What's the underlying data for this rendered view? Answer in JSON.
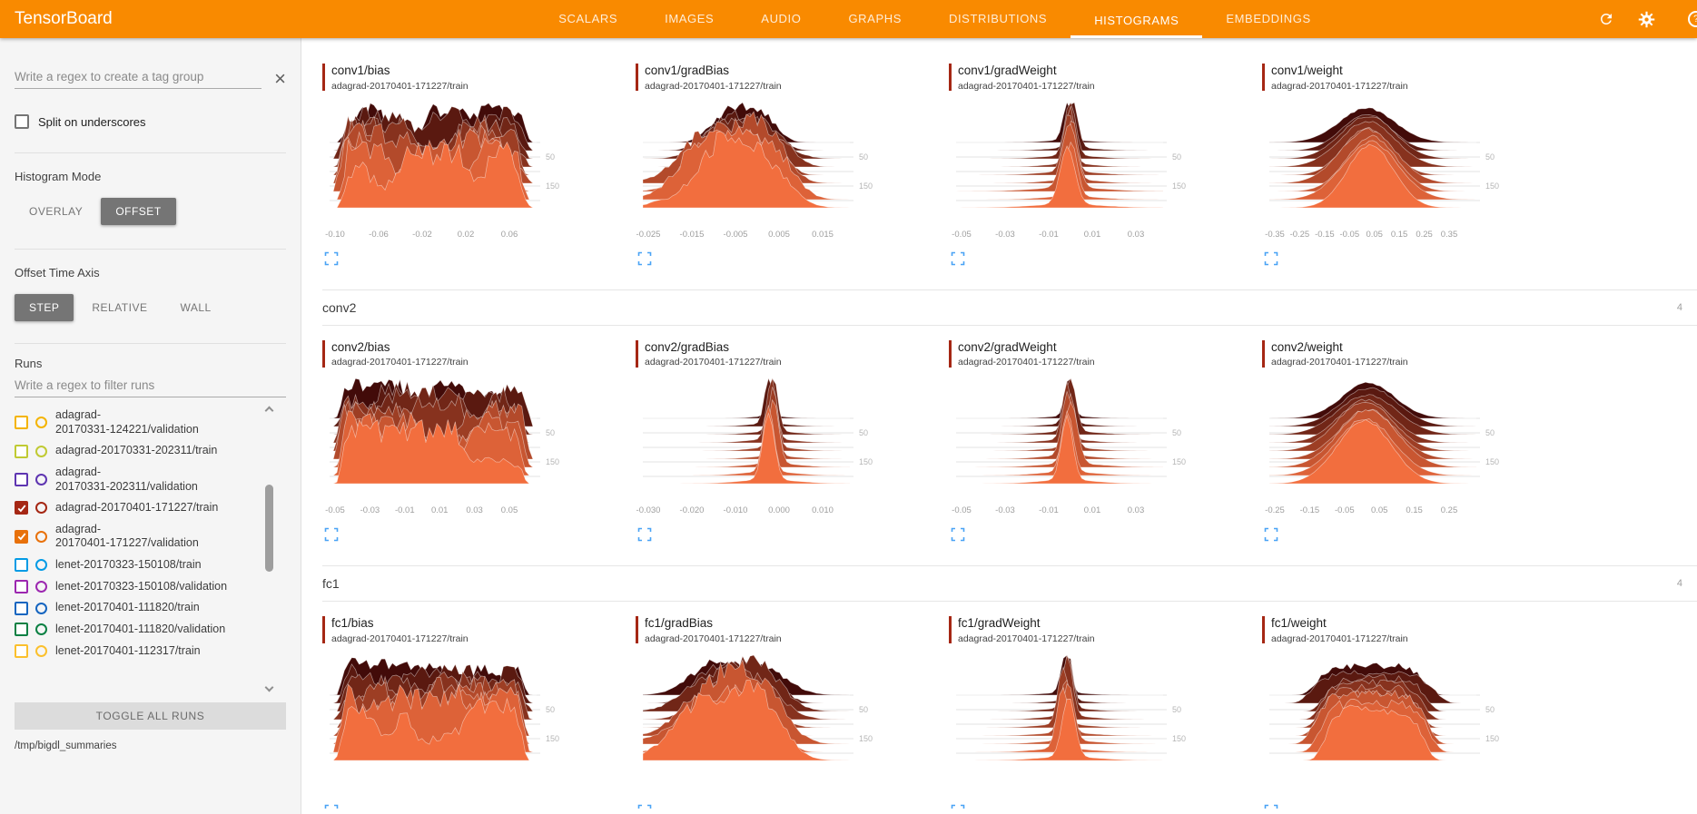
{
  "app": {
    "title": "TensorBoard",
    "accent_color": "#f98a00"
  },
  "nav": {
    "tabs": [
      {
        "label": "SCALARS",
        "active": false
      },
      {
        "label": "IMAGES",
        "active": false
      },
      {
        "label": "AUDIO",
        "active": false
      },
      {
        "label": "GRAPHS",
        "active": false
      },
      {
        "label": "DISTRIBUTIONS",
        "active": false
      },
      {
        "label": "HISTOGRAMS",
        "active": true
      },
      {
        "label": "EMBEDDINGS",
        "active": false
      }
    ]
  },
  "sidebar": {
    "tag_filter": {
      "placeholder": "Write a regex to create a tag group"
    },
    "split_on_underscores": {
      "label": "Split on underscores",
      "checked": false
    },
    "histogram_mode": {
      "label": "Histogram Mode",
      "options": [
        {
          "label": "OVERLAY",
          "selected": false
        },
        {
          "label": "OFFSET",
          "selected": true
        }
      ]
    },
    "offset_time_axis": {
      "label": "Offset Time Axis",
      "options": [
        {
          "label": "STEP",
          "selected": true
        },
        {
          "label": "RELATIVE",
          "selected": false
        },
        {
          "label": "WALL",
          "selected": false
        }
      ]
    },
    "runs": {
      "label": "Runs",
      "filter_placeholder": "Write a regex to filter runs",
      "items": [
        {
          "label": "adagrad-20170331-124221/validation",
          "color": "#f4b400",
          "checked": false
        },
        {
          "label": "adagrad-20170331-202311/train",
          "color": "#c0ca33",
          "checked": false
        },
        {
          "label": "adagrad-20170331-202311/validation",
          "color": "#5e35b1",
          "checked": false
        },
        {
          "label": "adagrad-20170401-171227/train",
          "color": "#a52714",
          "checked": true
        },
        {
          "label": "adagrad-20170401-171227/validation",
          "color": "#e8710a",
          "checked": true
        },
        {
          "label": "lenet-20170323-150108/train",
          "color": "#039be5",
          "checked": false
        },
        {
          "label": "lenet-20170323-150108/validation",
          "color": "#9c27b0",
          "checked": false
        },
        {
          "label": "lenet-20170401-111820/train",
          "color": "#1565c0",
          "checked": false
        },
        {
          "label": "lenet-20170401-111820/validation",
          "color": "#0a8043",
          "checked": false
        },
        {
          "label": "lenet-20170401-112317/train",
          "color": "#fbc02d",
          "checked": false
        }
      ],
      "toggle_all_label": "TOGGLE ALL RUNS",
      "log_dir": "/tmp/bigdl_summaries"
    }
  },
  "main": {
    "sections": [
      {
        "name": "",
        "count": "",
        "card_indices": [
          0,
          1,
          2,
          3
        ]
      },
      {
        "name": "conv2",
        "count": "4",
        "card_indices": [
          4,
          5,
          6,
          7
        ]
      },
      {
        "name": "fc1",
        "count": "4",
        "card_indices": [
          8,
          9,
          10,
          11
        ]
      }
    ]
  },
  "chart_data": [
    {
      "type": "histogram-offset",
      "section": "conv1",
      "tag": "conv1/bias",
      "run": "adagrad-20170401-171227/train",
      "run_color": "#a52714",
      "shape": "jagged",
      "center": 0.5,
      "spread": 0.3,
      "layers": 9,
      "x_ticks": [
        "-0.10",
        "-0.06",
        "-0.02",
        "0.02",
        "0.06"
      ],
      "y_ticks": [
        "50",
        "150"
      ]
    },
    {
      "type": "histogram-offset",
      "section": "conv1",
      "tag": "conv1/gradBias",
      "run": "adagrad-20170401-171227/train",
      "run_color": "#a52714",
      "shape": "noisy-peak",
      "center": 0.5,
      "spread": 0.1,
      "layers": 9,
      "x_ticks": [
        "-0.025",
        "-0.015",
        "-0.005",
        "0.005",
        "0.015"
      ],
      "y_ticks": [
        "50",
        "150"
      ]
    },
    {
      "type": "histogram-offset",
      "section": "conv1",
      "tag": "conv1/gradWeight",
      "run": "adagrad-20170401-171227/train",
      "run_color": "#a52714",
      "shape": "spike",
      "center": 0.55,
      "spread": 0.02,
      "layers": 9,
      "x_ticks": [
        "-0.05",
        "-0.03",
        "-0.01",
        "0.01",
        "0.03"
      ],
      "y_ticks": [
        "50",
        "150"
      ]
    },
    {
      "type": "histogram-offset",
      "section": "conv1",
      "tag": "conv1/weight",
      "run": "adagrad-20170401-171227/train",
      "run_color": "#a52714",
      "shape": "bell",
      "center": 0.48,
      "spread": 0.11,
      "layers": 9,
      "x_ticks": [
        "-0.35",
        "-0.25",
        "-0.15",
        "-0.05",
        "0.05",
        "0.15",
        "0.25",
        "0.35"
      ],
      "y_ticks": [
        "50",
        "150"
      ]
    },
    {
      "type": "histogram-offset",
      "section": "conv2",
      "tag": "conv2/bias",
      "run": "adagrad-20170401-171227/train",
      "run_color": "#a52714",
      "shape": "jagged",
      "center": 0.5,
      "spread": 0.3,
      "layers": 9,
      "x_ticks": [
        "-0.05",
        "-0.03",
        "-0.01",
        "0.01",
        "0.03",
        "0.05"
      ],
      "y_ticks": [
        "50",
        "150"
      ]
    },
    {
      "type": "histogram-offset",
      "section": "conv2",
      "tag": "conv2/gradBias",
      "run": "adagrad-20170401-171227/train",
      "run_color": "#a52714",
      "shape": "spike",
      "center": 0.62,
      "spread": 0.016,
      "layers": 9,
      "x_ticks": [
        "-0.030",
        "-0.020",
        "-0.010",
        "0.000",
        "0.010"
      ],
      "y_ticks": [
        "50",
        "150"
      ]
    },
    {
      "type": "histogram-offset",
      "section": "conv2",
      "tag": "conv2/gradWeight",
      "run": "adagrad-20170401-171227/train",
      "run_color": "#a52714",
      "shape": "spike",
      "center": 0.55,
      "spread": 0.02,
      "layers": 9,
      "x_ticks": [
        "-0.05",
        "-0.03",
        "-0.01",
        "0.01",
        "0.03"
      ],
      "y_ticks": [
        "50",
        "150"
      ]
    },
    {
      "type": "histogram-offset",
      "section": "conv2",
      "tag": "conv2/weight",
      "run": "adagrad-20170401-171227/train",
      "run_color": "#a52714",
      "shape": "bell",
      "center": 0.47,
      "spread": 0.12,
      "layers": 9,
      "x_ticks": [
        "-0.25",
        "-0.15",
        "-0.05",
        "0.05",
        "0.15",
        "0.25"
      ],
      "y_ticks": [
        "50",
        "150"
      ]
    },
    {
      "type": "histogram-offset",
      "section": "fc1",
      "tag": "fc1/bias",
      "run": "adagrad-20170401-171227/train",
      "run_color": "#a52714",
      "shape": "jagged",
      "center": 0.5,
      "spread": 0.3,
      "layers": 9,
      "x_ticks": [],
      "y_ticks": [
        "50",
        "150"
      ]
    },
    {
      "type": "histogram-offset",
      "section": "fc1",
      "tag": "fc1/gradBias",
      "run": "adagrad-20170401-171227/train",
      "run_color": "#a52714",
      "shape": "noisy-peak",
      "center": 0.47,
      "spread": 0.11,
      "layers": 9,
      "x_ticks": [],
      "y_ticks": [
        "50",
        "150"
      ]
    },
    {
      "type": "histogram-offset",
      "section": "fc1",
      "tag": "fc1/gradWeight",
      "run": "adagrad-20170401-171227/train",
      "run_color": "#a52714",
      "shape": "spike",
      "center": 0.53,
      "spread": 0.018,
      "layers": 9,
      "x_ticks": [],
      "y_ticks": [
        "50",
        "150"
      ]
    },
    {
      "type": "histogram-offset",
      "section": "fc1",
      "tag": "fc1/weight",
      "run": "adagrad-20170401-171227/train",
      "run_color": "#a52714",
      "shape": "flat-bell",
      "center": 0.5,
      "spread": 0.27,
      "layers": 9,
      "x_ticks": [],
      "y_ticks": [
        "50",
        "150"
      ]
    }
  ]
}
